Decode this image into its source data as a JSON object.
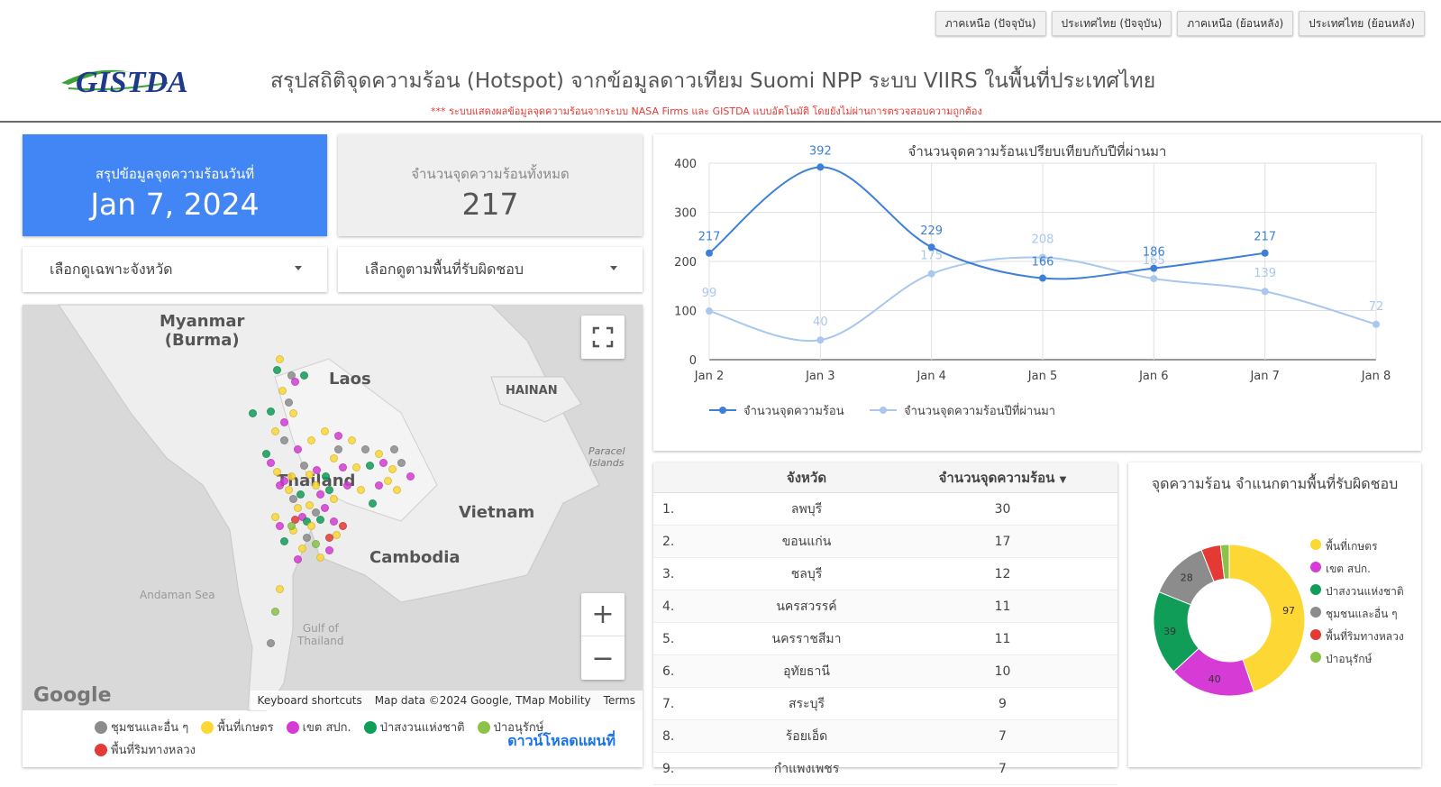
{
  "nav": {
    "buttons": [
      "ภาคเหนือ (ปัจจุบัน)",
      "ประเทศไทย (ปัจจุบัน)",
      "ภาคเหนือ (ย้อนหลัง)",
      "ประเทศไทย (ย้อนหลัง)"
    ]
  },
  "header": {
    "logo_text": "GISTDA",
    "title": "สรุปสถิติจุดความร้อน (Hotspot) จากข้อมูลดาวเทียม Suomi NPP ระบบ VIIRS  ในพื้นที่ประเทศไทย",
    "disclaimer": "*** ระบบแสดงผลข้อมูลจุดความร้อนจากระบบ NASA Firms และ GISTDA แบบอัตโนมัติ โดยยังไม่ผ่านการตรวจสอบความถูกต้อง"
  },
  "summary": {
    "date_label": "สรุปข้อมูลจุดความร้อนวันที่",
    "date_value": "Jan 7, 2024",
    "total_label": "จำนวนจุดความร้อนทั้งหมด",
    "total_value": "217"
  },
  "filters": {
    "province": "เลือกดูเฉพาะจังหวัด",
    "area": "เลือกดูตามพื้นที่รับผิดชอบ"
  },
  "map": {
    "labels": {
      "myanmar": "Myanmar\n(Burma)",
      "laos": "Laos",
      "hainan": "HAINAN",
      "thailand": "Thailand",
      "vietnam": "Vietnam",
      "cambodia": "Cambodia",
      "andaman": "Andaman Sea",
      "gulf": "Gulf of\nThailand",
      "paracel": "Paracel\nIslands"
    },
    "attribution": [
      "Keyboard shortcuts",
      "Map data ©2024 Google, TMap Mobility",
      "Terms"
    ],
    "google": "Google",
    "legend": [
      {
        "label": "ชุมชนและอื่น ๆ",
        "color": "#8c8c8c"
      },
      {
        "label": "พื้นที่เกษตร",
        "color": "#fdd835"
      },
      {
        "label": "เขต สปก.",
        "color": "#d63bd6"
      },
      {
        "label": "ป่าสงวนแห่งชาติ",
        "color": "#0f9d58"
      },
      {
        "label": "ป่าอนุรักษ์",
        "color": "#8bc34a"
      },
      {
        "label": "พื้นที่ริมทางหลวง",
        "color": "#e53935"
      }
    ],
    "download": "ดาวน์โหลดแผนที่",
    "colors": {
      "land": "#eeeeee",
      "sea": "#d9d9d9"
    }
  },
  "chart_data": [
    {
      "type": "line",
      "title": "จำนวนจุดความร้อนเปรียบเทียบกับปีที่ผ่านมา",
      "categories": [
        "Jan 2",
        "Jan 3",
        "Jan 4",
        "Jan 5",
        "Jan 6",
        "Jan 7",
        "Jan 8"
      ],
      "ylim": [
        0,
        400
      ],
      "yticks": [
        0,
        100,
        200,
        300,
        400
      ],
      "grid": true,
      "legend_position": "bottom",
      "series": [
        {
          "name": "จำนวนจุดความร้อน",
          "values": [
            217,
            392,
            229,
            166,
            186,
            217,
            null
          ],
          "color": "#3d7fd9"
        },
        {
          "name": "จำนวนจุดความร้อนปีที่ผ่านมา",
          "values": [
            99,
            40,
            175,
            208,
            165,
            139,
            72
          ],
          "color": "#a9c7ef"
        }
      ]
    },
    {
      "type": "pie",
      "title": "จุดความร้อน จำแนกตามพื้นที่รับผิดชอบ",
      "categories": [
        "พื้นที่เกษตร",
        "เขต สปก.",
        "ป่าสงวนแห่งชาติ",
        "ชุมชนและอื่น ๆ",
        "พื้นที่ริมทางหลวง",
        "ป่าอนุรักษ์"
      ],
      "values": [
        97,
        40,
        39,
        28,
        9,
        4
      ],
      "colors": [
        "#fdd835",
        "#d63bd6",
        "#0f9d58",
        "#8c8c8c",
        "#e53935",
        "#8bc34a"
      ],
      "donut": true
    }
  ],
  "table": {
    "headers": [
      "จังหวัด",
      "จำนวนจุดความร้อน"
    ],
    "rows": [
      {
        "rank": "1.",
        "province": "ลพบุรี",
        "count": "30"
      },
      {
        "rank": "2.",
        "province": "ขอนแก่น",
        "count": "17"
      },
      {
        "rank": "3.",
        "province": "ชลบุรี",
        "count": "12"
      },
      {
        "rank": "4.",
        "province": "นครสวรรค์",
        "count": "11"
      },
      {
        "rank": "5.",
        "province": "นครราชสีมา",
        "count": "11"
      },
      {
        "rank": "6.",
        "province": "อุทัยธานี",
        "count": "10"
      },
      {
        "rank": "7.",
        "province": "สระบุรี",
        "count": "9"
      },
      {
        "rank": "8.",
        "province": "ร้อยเอ็ด",
        "count": "7"
      },
      {
        "rank": "9.",
        "province": "กำแพงเพชร",
        "count": "7"
      }
    ]
  }
}
